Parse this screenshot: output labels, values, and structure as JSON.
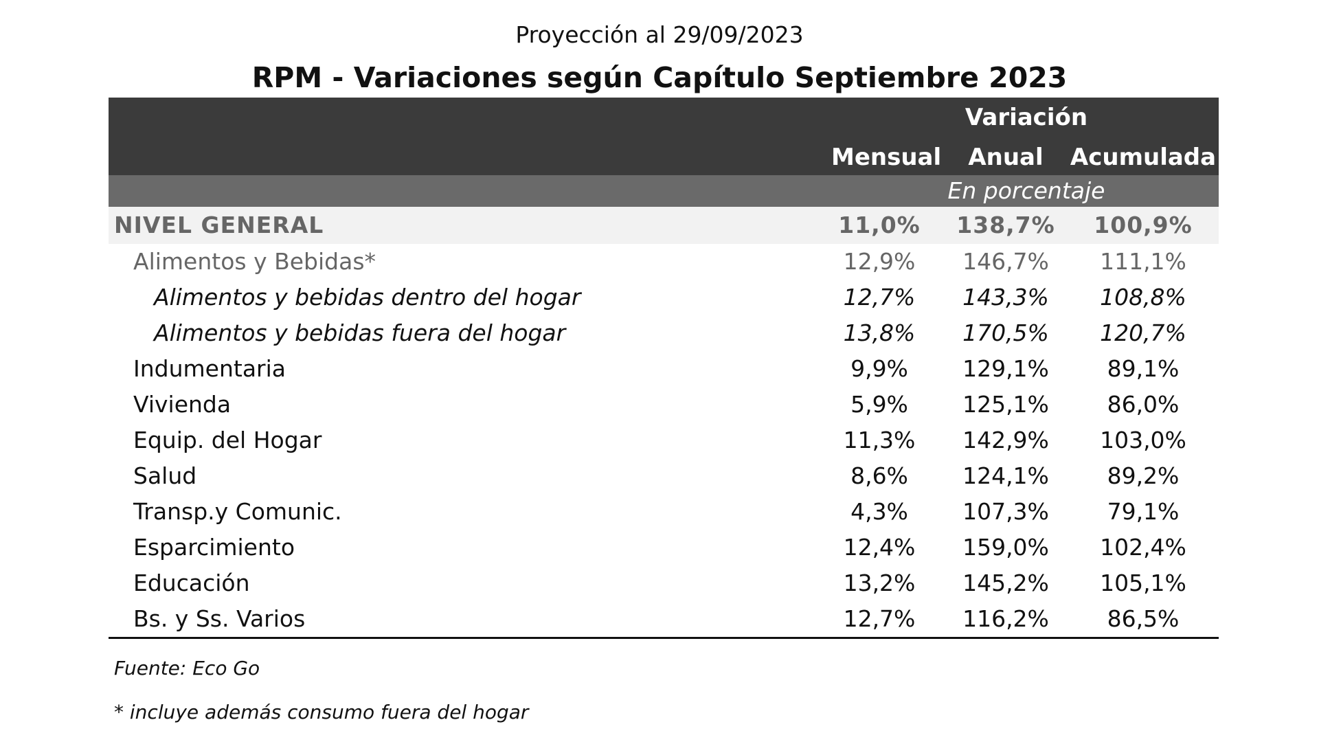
{
  "chart_data": {
    "type": "table",
    "subtitle": "Proyección al 29/09/2023",
    "title": "RPM - Variaciones según Capítulo Septiembre 2023",
    "group_header": "Variación",
    "columns": [
      "Mensual",
      "Anual",
      "Acumulada"
    ],
    "unit": "En porcentaje",
    "rows": [
      {
        "label": "NIVEL GENERAL",
        "style": "general",
        "indent": 0,
        "values": [
          "11,0%",
          "138,7%",
          "100,9%"
        ]
      },
      {
        "label": "Alimentos y Bebidas*",
        "style": "main-sub",
        "indent": 1,
        "values": [
          "12,9%",
          "146,7%",
          "111,1%"
        ]
      },
      {
        "label": "Alimentos y bebidas dentro del hogar",
        "style": "italic",
        "indent": 2,
        "values": [
          "12,7%",
          "143,3%",
          "108,8%"
        ]
      },
      {
        "label": "Alimentos y bebidas fuera del hogar",
        "style": "italic",
        "indent": 2,
        "values": [
          "13,8%",
          "170,5%",
          "120,7%"
        ]
      },
      {
        "label": "Indumentaria",
        "style": "normal",
        "indent": 1,
        "values": [
          "9,9%",
          "129,1%",
          "89,1%"
        ]
      },
      {
        "label": "Vivienda",
        "style": "normal",
        "indent": 1,
        "values": [
          "5,9%",
          "125,1%",
          "86,0%"
        ]
      },
      {
        "label": "Equip. del Hogar",
        "style": "normal",
        "indent": 1,
        "values": [
          "11,3%",
          "142,9%",
          "103,0%"
        ]
      },
      {
        "label": "Salud",
        "style": "normal",
        "indent": 1,
        "values": [
          "8,6%",
          "124,1%",
          "89,2%"
        ]
      },
      {
        "label": "Transp.y Comunic.",
        "style": "normal",
        "indent": 1,
        "values": [
          "4,3%",
          "107,3%",
          "79,1%"
        ]
      },
      {
        "label": "Esparcimiento",
        "style": "normal",
        "indent": 1,
        "values": [
          "12,4%",
          "159,0%",
          "102,4%"
        ]
      },
      {
        "label": "Educación",
        "style": "normal",
        "indent": 1,
        "values": [
          "13,2%",
          "145,2%",
          "105,1%"
        ]
      },
      {
        "label": "Bs. y Ss. Varios",
        "style": "normal",
        "indent": 1,
        "values": [
          "12,7%",
          "116,2%",
          "86,5%"
        ]
      }
    ],
    "source": "Fuente: Eco Go",
    "footnote": "* incluye además consumo fuera del hogar"
  },
  "colors": {
    "header_dark": "#3b3b3b",
    "header_band": "#6a6a6a",
    "general_row_bg": "#f2f2f2",
    "muted_text": "#666666"
  }
}
